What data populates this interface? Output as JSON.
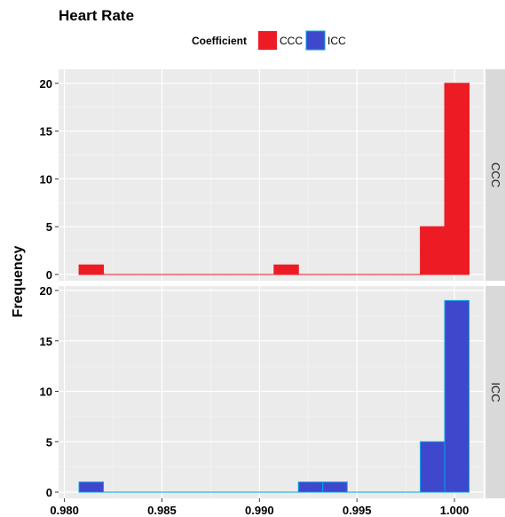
{
  "chart_data": {
    "type": "bar",
    "title": "Heart Rate",
    "legend": {
      "title": "Coefficient",
      "position": "top",
      "entries": [
        {
          "label": "CCC",
          "fill": "#ED1C24",
          "stroke": "#ED1C24"
        },
        {
          "label": "ICC",
          "fill": "#3F48CC",
          "stroke": "#00A2E8"
        }
      ]
    },
    "xlabel": "",
    "ylabel": "Frequency",
    "xlim": [
      0.9797,
      1.0015
    ],
    "x_ticks": [
      "0.980",
      "0.985",
      "0.990",
      "0.995",
      "1.000"
    ],
    "x_tick_values": [
      0.98,
      0.985,
      0.99,
      0.995,
      1.0
    ],
    "bin_width": 0.00125,
    "bin_start": 0.98075,
    "grid": true,
    "facets": [
      {
        "label": "CCC",
        "ylim": [
          0,
          21
        ],
        "y_ticks": [
          0,
          5,
          10,
          15,
          20
        ],
        "fill": "#ED1C24",
        "stroke": "#ED1C24",
        "counts": [
          1,
          0,
          0,
          0,
          0,
          0,
          0,
          0,
          1,
          0,
          0,
          0,
          0,
          0,
          5,
          20
        ]
      },
      {
        "label": "ICC",
        "ylim": [
          0,
          20
        ],
        "y_ticks": [
          0,
          5,
          10,
          15,
          20
        ],
        "fill": "#3F48CC",
        "stroke": "#00A2E8",
        "counts": [
          1,
          0,
          0,
          0,
          0,
          0,
          0,
          0,
          0,
          1,
          1,
          0,
          0,
          0,
          5,
          19
        ]
      }
    ]
  }
}
